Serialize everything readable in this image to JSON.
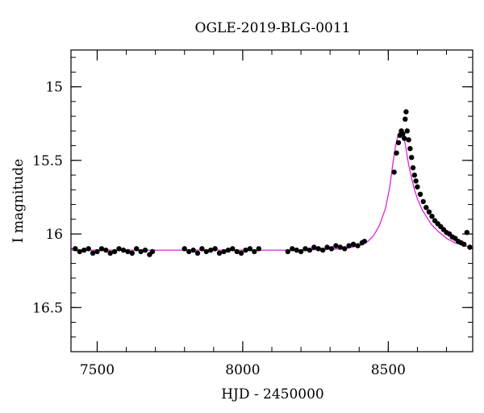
{
  "chart_data": {
    "type": "scatter",
    "title": "OGLE-2019-BLG-0011",
    "xlabel": "HJD - 2450000",
    "ylabel": "I magnitude",
    "xlim": [
      7410,
      8790
    ],
    "ylim": [
      16.8,
      14.75
    ],
    "y_inverted": true,
    "x_ticks": [
      7500,
      8000,
      8500
    ],
    "y_ticks": [
      15,
      15.5,
      16,
      16.5
    ],
    "x_minor_step": 100,
    "y_minor_step": 0.1,
    "grid": false,
    "colors": {
      "points": "#000000",
      "model": "#dd22dd",
      "frame": "#000000"
    },
    "series": [
      {
        "kind": "points",
        "x": [
          7425,
          7440,
          7455,
          7470,
          7485,
          7500,
          7515,
          7530,
          7545,
          7560,
          7575,
          7590,
          7605,
          7620,
          7635,
          7650,
          7665,
          7680,
          7690,
          7800,
          7815,
          7830,
          7845,
          7860,
          7875,
          7890,
          7905,
          7920,
          7935,
          7950,
          7965,
          7980,
          7995,
          8010,
          8025,
          8040,
          8055,
          8155,
          8170,
          8185,
          8200,
          8215,
          8230,
          8245,
          8260,
          8275,
          8290,
          8305,
          8320,
          8335,
          8350,
          8365,
          8380,
          8395,
          8410,
          8418,
          8520,
          8528,
          8535,
          8540,
          8545,
          8550,
          8555,
          8558,
          8561,
          8565,
          8570,
          8575,
          8580,
          8585,
          8590,
          8595,
          8600,
          8610,
          8620,
          8630,
          8640,
          8650,
          8660,
          8670,
          8680,
          8690,
          8700,
          8710,
          8720,
          8730,
          8740,
          8750,
          8760,
          8770,
          8780
        ],
        "y": [
          16.1,
          16.12,
          16.11,
          16.1,
          16.13,
          16.12,
          16.1,
          16.11,
          16.13,
          16.12,
          16.1,
          16.11,
          16.12,
          16.13,
          16.1,
          16.12,
          16.11,
          16.14,
          16.12,
          16.1,
          16.12,
          16.11,
          16.13,
          16.1,
          16.12,
          16.11,
          16.1,
          16.13,
          16.12,
          16.11,
          16.1,
          16.12,
          16.13,
          16.11,
          16.1,
          16.12,
          16.1,
          16.12,
          16.1,
          16.11,
          16.12,
          16.1,
          16.11,
          16.09,
          16.1,
          16.11,
          16.09,
          16.1,
          16.08,
          16.09,
          16.1,
          16.08,
          16.07,
          16.08,
          16.06,
          16.05,
          15.58,
          15.45,
          15.38,
          15.33,
          15.3,
          15.32,
          15.35,
          15.22,
          15.17,
          15.3,
          15.36,
          15.42,
          15.48,
          15.55,
          15.6,
          15.64,
          15.68,
          15.73,
          15.78,
          15.82,
          15.85,
          15.88,
          15.91,
          15.93,
          15.95,
          15.97,
          15.99,
          16.0,
          16.02,
          16.03,
          16.05,
          16.06,
          16.07,
          15.99,
          16.09
        ]
      },
      {
        "kind": "model",
        "x": [
          7410,
          7800,
          8200,
          8350,
          8400,
          8430,
          8450,
          8470,
          8490,
          8505,
          8515,
          8525,
          8533,
          8540,
          8545,
          8550,
          8555,
          8560,
          8565,
          8570,
          8580,
          8590,
          8600,
          8615,
          8630,
          8650,
          8670,
          8700,
          8730,
          8760,
          8790
        ],
        "y": [
          16.11,
          16.11,
          16.11,
          16.1,
          16.08,
          16.05,
          16.01,
          15.94,
          15.83,
          15.68,
          15.53,
          15.4,
          15.33,
          15.3,
          15.29,
          15.31,
          15.35,
          15.41,
          15.47,
          15.53,
          15.62,
          15.7,
          15.76,
          15.83,
          15.88,
          15.94,
          15.98,
          16.03,
          16.06,
          16.08,
          16.09
        ]
      }
    ]
  }
}
